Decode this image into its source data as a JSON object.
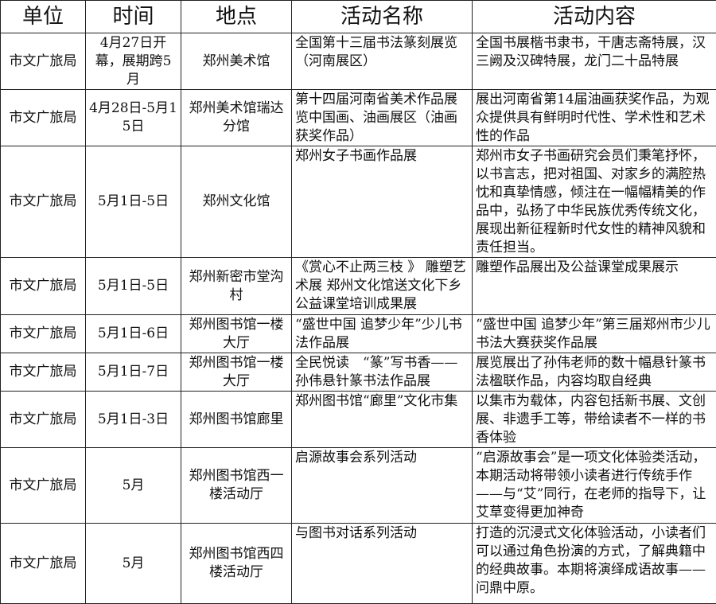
{
  "headers": [
    "单位",
    "时间",
    "地点",
    "活动名称",
    "活动内容"
  ],
  "rows": [
    {
      "unit": "市文广旅局",
      "time": "4月27日开幕，展期跨5月",
      "place": "郑州美术馆",
      "name": "全国第十三届书法篆刻展览（河南展区）",
      "content": "全国书展楷书隶书，干唐志斋特展，汉三阙及汉碑特展，龙门二十品特展"
    },
    {
      "unit": "市文广旅局",
      "time": "4月28日-5月15日",
      "place": "郑州美术馆瑞达分馆",
      "name": "第十四届河南省美术作品展览中国画、油画展区（油画获奖作品）",
      "content": "展出河南省第14届油画获奖作品，为观众提供具有鲜明时代性、学术性和艺术性的作品"
    },
    {
      "unit": "市文广旅局",
      "time": "5月1日-5日",
      "place": "郑州文化馆",
      "name": "郑州女子书画作品展",
      "content": "郑州市女子书画研究会员们秉笔抒怀，以书言志，把对祖国、对家乡的满腔热忱和真挚情感，倾注在一幅幅精美的作品中，弘扬了中华民族优秀传统文化，展现出新征程新时代女性的精神风貌和责任担当。"
    },
    {
      "unit": "市文广旅局",
      "time": "5月1日-5日",
      "place": "郑州新密市堂沟村",
      "name": "《赏心不止两三枝 》 雕塑艺术展 郑州文化馆送文化下乡公益课堂培训成果展",
      "content": "雕塑作品展出及公益课堂成果展示"
    },
    {
      "unit": "市文广旅局",
      "time": "5月1日-6日",
      "place": "郑州图书馆一楼大厅",
      "name": "“盛世中国 追梦少年”少儿书法作品展",
      "content": "“盛世中国 追梦少年”第三届郑州市少儿书法大赛获奖作品展"
    },
    {
      "unit": "市文广旅局",
      "time": "5月1日-7日",
      "place": "郑州图书馆一楼大厅",
      "name": "全民悦读　“篆”写书香——孙伟悬针篆书法作品展",
      "content": "展览展出了孙伟老师的数十幅悬针篆书法楹联作品，内容均取自经典"
    },
    {
      "unit": "市文广旅局",
      "time": "5月1日-3日",
      "place": "郑州图书馆廊里",
      "name": "郑州图书馆“廊里”文化市集",
      "content": "以集市为载体，内容包括新书展、文创展、非遗手工等，带给读者不一样的书香体验"
    },
    {
      "unit": "市文广旅局",
      "time": "5月",
      "place": "郑州图书馆西一楼活动厅",
      "name": "启源故事会系列活动",
      "content": "“启源故事会”是一项文化体验类活动，本期活动将带领小读者进行传统手作——与“艾”同行，在老师的指导下，让艾草变得更加神奇"
    },
    {
      "unit": "市文广旅局",
      "time": "5月",
      "place": "郑州图书馆西四楼活动厅",
      "name": "与图书对话系列活动",
      "content": "打造的沉浸式文化体验活动，小读者们可以通过角色扮演的方式，了解典籍中的经典故事。本期将演绎成语故事——问鼎中原。"
    }
  ]
}
